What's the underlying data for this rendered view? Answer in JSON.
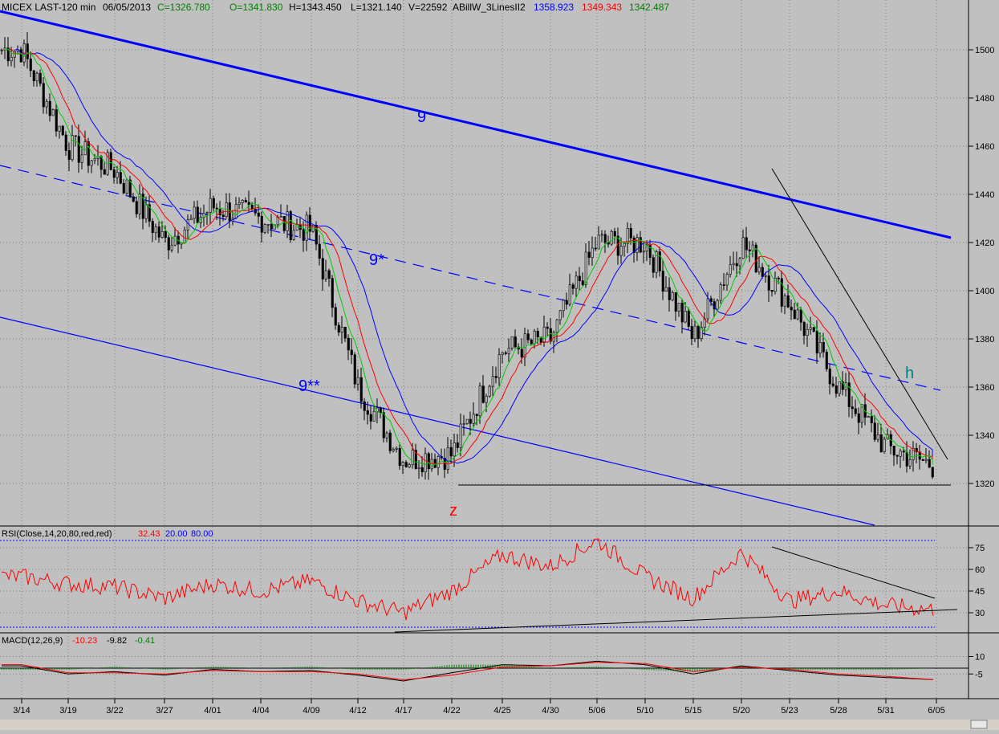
{
  "header": {
    "symbol": "MICEX LAST-120 min",
    "date": "06/05/2013",
    "close": "C=1326.780",
    "open": "O=1341.830",
    "high": "H=1343.450",
    "low": "L=1321.140",
    "volume": "V=22592",
    "indicator": "ABillW_3LinesII2",
    "v1": "1358.923",
    "v2": "1349.343",
    "v3": "1342.487"
  },
  "rsi_header": {
    "label": "RSI(Close,14,20,80,red,red)",
    "value": "32.43",
    "lo": "20.00",
    "hi": "80.00"
  },
  "macd_header": {
    "label": "MACD(12,26,9)",
    "macd": "-10.23",
    "signal": "-9.82",
    "hist": "-0.41"
  },
  "annotations": {
    "line9": "9",
    "line9s": "9*",
    "line9ss": "9**",
    "z": "z",
    "h": "h"
  },
  "colors": {
    "background": "#c0c0c0",
    "grid": "#808080",
    "candle": "#000000",
    "blue_ma": "#0000ff",
    "red_ma": "#ff0000",
    "green_ma": "#00cc00",
    "channel": "#0000ff",
    "z_label": "#ff0000",
    "h_label": "#008080"
  },
  "chart_data": [
    {
      "type": "line",
      "title": "MICEX LAST-120 min",
      "series": [
        {
          "name": "Close",
          "x": [
            "3/14",
            "3/19",
            "3/22",
            "3/27",
            "4/01",
            "4/04",
            "4/09",
            "4/12",
            "4/17",
            "4/22",
            "4/25",
            "4/30",
            "5/06",
            "5/10",
            "5/15",
            "5/20",
            "5/23",
            "5/28",
            "5/31",
            "6/05"
          ],
          "values": [
            1500,
            1460,
            1450,
            1420,
            1435,
            1430,
            1425,
            1360,
            1330,
            1332,
            1375,
            1380,
            1420,
            1420,
            1380,
            1420,
            1395,
            1360,
            1335,
            1327
          ]
        }
      ],
      "y_ticks": [
        1320,
        1340,
        1360,
        1380,
        1400,
        1420,
        1440,
        1460,
        1480,
        1500
      ],
      "ylim": [
        1310,
        1515
      ],
      "x_ticks": [
        "3/14",
        "3/19",
        "3/22",
        "3/27",
        "4/01",
        "4/04",
        "4/09",
        "4/12",
        "4/17",
        "4/22",
        "4/25",
        "4/30",
        "5/06",
        "5/10",
        "5/15",
        "5/20",
        "5/23",
        "5/28",
        "5/31",
        "6/05"
      ],
      "grid": true
    },
    {
      "type": "line",
      "title": "RSI(Close,14,20,80,red,red)",
      "y_ticks": [
        30,
        45,
        60,
        75
      ],
      "ylim": [
        15,
        85
      ],
      "levels": [
        20,
        80
      ],
      "series": [
        {
          "name": "RSI",
          "values": [
            55,
            50,
            48,
            40,
            50,
            45,
            52,
            38,
            30,
            45,
            70,
            62,
            80,
            55,
            40,
            72,
            38,
            45,
            35,
            32
          ]
        }
      ]
    },
    {
      "type": "line",
      "title": "MACD(12,26,9)",
      "y_ticks": [
        -5,
        10
      ],
      "ylim": [
        -12,
        17
      ],
      "series": [
        {
          "name": "MACD",
          "values": [
            2,
            -5,
            -3,
            -6,
            -1,
            -3,
            -2,
            -6,
            -11,
            -4,
            3,
            2,
            6,
            3,
            -5,
            2,
            -2,
            -6,
            -8,
            -10
          ]
        },
        {
          "name": "Signal",
          "values": [
            3,
            -4,
            -4,
            -5,
            -2,
            -3,
            -3,
            -5,
            -10,
            -6,
            1,
            2,
            5,
            4,
            -3,
            1,
            -1,
            -5,
            -7,
            -10
          ]
        }
      ]
    }
  ]
}
